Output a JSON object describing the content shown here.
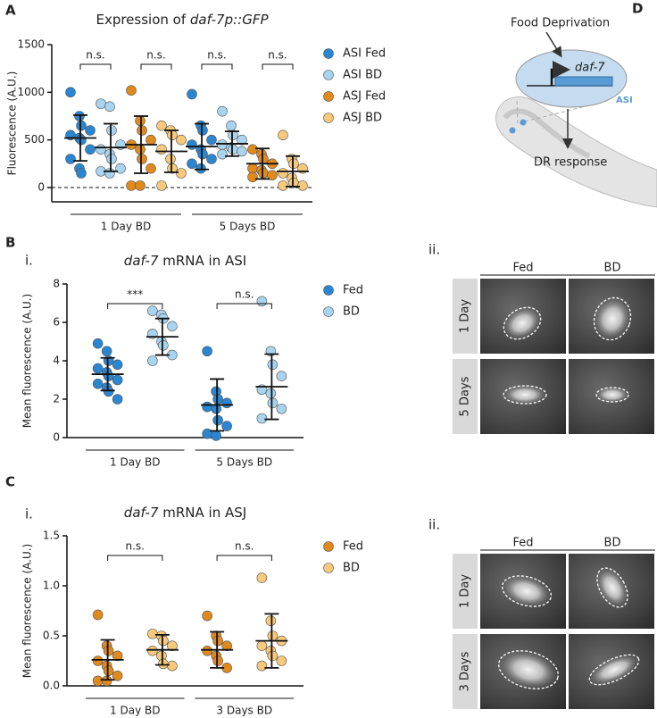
{
  "chart_data": [
    {
      "type": "dotplot",
      "label": "A",
      "title": [
        {
          "text": "Expression of "
        },
        {
          "text": "daf-7p::GFP",
          "italic": true
        }
      ],
      "ylabel": "Fluorescence (A.U.)",
      "ylim": [
        -150,
        1500
      ],
      "yticks": [
        0,
        500,
        1000,
        1500
      ],
      "zero_line": true,
      "groups": [
        "1 Day BD",
        "5 Days BD"
      ],
      "annotations": [
        "n.s.",
        "n.s.",
        "n.s.",
        "n.s."
      ],
      "series": [
        {
          "name": "ASI Fed",
          "color": "#2a86d0",
          "values": [
            [
              1000,
              750,
              650,
              600,
              550,
              520,
              500,
              400,
              300,
              200,
              150
            ],
            [
              980,
              650,
              600,
              500,
              450,
              400,
              350,
              300,
              250,
              200
            ]
          ],
          "mean": [
            520,
            430
          ],
          "sd": [
            240,
            240
          ]
        },
        {
          "name": "ASI BD",
          "color": "#a8d4ef",
          "values": [
            [
              880,
              850,
              600,
              450,
              400,
              350,
              300,
              200,
              170,
              150
            ],
            [
              800,
              650,
              550,
              500,
              450,
              420,
              400,
              380,
              350
            ]
          ],
          "mean": [
            420,
            460
          ],
          "sd": [
            250,
            130
          ]
        },
        {
          "name": "ASJ Fed",
          "color": "#e08a1e",
          "values": [
            [
              1020,
              700,
              600,
              500,
              450,
              400,
              300,
              200,
              20,
              20
            ],
            [
              400,
              350,
              300,
              250,
              200,
              180,
              150,
              130,
              110
            ]
          ],
          "mean": [
            450,
            250
          ],
          "sd": [
            300,
            160
          ]
        },
        {
          "name": "ASJ BD",
          "color": "#f7c97a",
          "values": [
            [
              650,
              600,
              550,
              500,
              400,
              300,
              200,
              150,
              20
            ],
            [
              550,
              300,
              250,
              200,
              150,
              100,
              50,
              20,
              20
            ]
          ],
          "mean": [
            380,
            170
          ],
          "sd": [
            220,
            160
          ]
        }
      ]
    },
    {
      "type": "dotplot",
      "label": "B",
      "sublabel": "i.",
      "title": [
        {
          "text": "daf-7",
          "italic": true
        },
        {
          "text": " mRNA in ASI"
        }
      ],
      "ylabel": "Mean fluorescence (A.U.)",
      "ylim": [
        0,
        8
      ],
      "yticks": [
        0,
        2,
        4,
        6,
        8
      ],
      "groups": [
        "1 Day BD",
        "5 Days BD"
      ],
      "annotations": [
        "***",
        "n.s."
      ],
      "series": [
        {
          "name": "Fed",
          "color": "#2a86d0",
          "values": [
            [
              4.9,
              4.5,
              4.0,
              3.8,
              3.6,
              3.4,
              3.2,
              3.0,
              2.8,
              2.6,
              2.4,
              2.0
            ],
            [
              4.5,
              2.4,
              2.0,
              1.8,
              1.6,
              1.5,
              0.9,
              0.6,
              0.2,
              0.1
            ]
          ],
          "mean": [
            3.3,
            1.7
          ],
          "sd": [
            0.85,
            1.35
          ]
        },
        {
          "name": "BD",
          "color": "#a8d4ef",
          "values": [
            [
              6.6,
              6.4,
              6.2,
              5.8,
              5.4,
              5.0,
              4.8,
              4.3,
              4.0
            ],
            [
              7.1,
              4.5,
              3.8,
              3.2,
              2.5,
              2.3,
              1.8,
              1.5,
              1.0
            ]
          ],
          "mean": [
            5.25,
            2.65
          ],
          "sd": [
            0.95,
            1.7
          ]
        }
      ]
    },
    {
      "type": "dotplot",
      "label": "C",
      "sublabel": "i.",
      "title": [
        {
          "text": "daf-7",
          "italic": true
        },
        {
          "text": " mRNA in ASJ"
        }
      ],
      "ylabel": "Mean fluorescence (A.U.)",
      "ylim": [
        0,
        1.5
      ],
      "yticks": [
        {
          "value": 0,
          "label": "0.0"
        },
        0.5,
        {
          "value": 1,
          "label": "1.0"
        },
        1.5
      ],
      "groups": [
        "1 Day BD",
        "3 Days BD"
      ],
      "annotations": [
        "n.s.",
        "n.s."
      ],
      "series": [
        {
          "name": "Fed",
          "color": "#e08a1e",
          "values": [
            [
              0.71,
              0.4,
              0.35,
              0.3,
              0.25,
              0.2,
              0.15,
              0.1,
              0.05,
              0.05
            ],
            [
              0.7,
              0.5,
              0.45,
              0.4,
              0.35,
              0.3,
              0.25,
              0.18
            ]
          ],
          "mean": [
            0.26,
            0.36
          ],
          "sd": [
            0.2,
            0.18
          ]
        },
        {
          "name": "BD",
          "color": "#f7c97a",
          "values": [
            [
              0.52,
              0.5,
              0.45,
              0.4,
              0.35,
              0.3,
              0.22,
              0.2
            ],
            [
              1.08,
              0.65,
              0.5,
              0.45,
              0.4,
              0.35,
              0.3,
              0.25,
              0.2
            ]
          ],
          "mean": [
            0.36,
            0.45
          ],
          "sd": [
            0.15,
            0.27
          ]
        }
      ]
    }
  ],
  "diagram": {
    "label": "D",
    "stimulus": "Food Deprivation",
    "gene": "daf-7",
    "neuron": "ASI",
    "response": "DR response"
  },
  "images": [
    {
      "sublabel": "ii.",
      "columns": [
        "Fed",
        "BD"
      ],
      "rows": [
        "1 Day",
        "5 Days"
      ]
    },
    {
      "sublabel": "ii.",
      "columns": [
        "Fed",
        "BD"
      ],
      "rows": [
        "1 Day",
        "3 Days"
      ]
    }
  ]
}
